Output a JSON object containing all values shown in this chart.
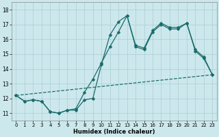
{
  "xlabel": "Humidex (Indice chaleur)",
  "bg_color": "#cce8ec",
  "line_color": "#1a6b6b",
  "grid_color": "#aacdd4",
  "xlim": [
    -0.5,
    23.5
  ],
  "ylim": [
    10.5,
    18.5
  ],
  "yticks": [
    11,
    12,
    13,
    14,
    15,
    16,
    17,
    18
  ],
  "xticks": [
    0,
    1,
    2,
    3,
    4,
    5,
    6,
    7,
    8,
    9,
    10,
    11,
    12,
    13,
    14,
    15,
    16,
    17,
    18,
    19,
    20,
    21,
    22,
    23
  ],
  "line1_x": [
    0,
    1,
    2,
    3,
    4,
    5,
    6,
    7,
    8,
    9,
    10,
    11,
    12,
    13,
    14,
    15,
    16,
    17,
    18,
    19,
    20,
    21,
    22,
    23
  ],
  "line1_y": [
    12.2,
    11.8,
    11.9,
    11.8,
    11.1,
    11.0,
    11.2,
    11.2,
    11.9,
    12.0,
    14.3,
    16.3,
    17.2,
    17.6,
    15.5,
    15.3,
    16.5,
    17.0,
    16.7,
    16.7,
    17.1,
    15.2,
    14.7,
    13.6
  ],
  "line2_x": [
    0,
    1,
    2,
    3,
    4,
    5,
    6,
    7,
    8,
    9,
    10,
    11,
    12,
    13,
    14,
    15,
    16,
    17,
    18,
    19,
    20,
    21,
    22,
    23
  ],
  "line2_y": [
    12.2,
    11.8,
    11.9,
    11.8,
    11.1,
    11.0,
    11.2,
    11.3,
    12.4,
    13.3,
    14.4,
    15.5,
    16.5,
    17.6,
    15.6,
    15.4,
    16.6,
    17.1,
    16.8,
    16.8,
    17.1,
    15.3,
    14.8,
    13.6
  ],
  "line3_x": [
    0,
    23
  ],
  "line3_y": [
    12.2,
    13.6
  ],
  "line_width": 0.9,
  "marker_size": 2.5
}
